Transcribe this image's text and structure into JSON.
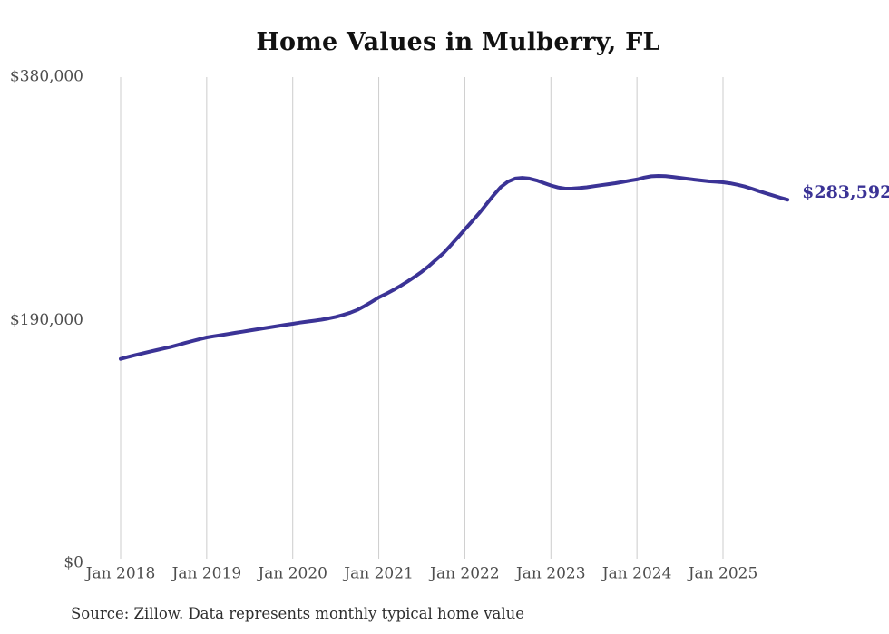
{
  "chart_data": {
    "type": "line",
    "title": "Home Values in Mulberry, FL",
    "source_note": "Source: Zillow. Data represents monthly typical home value",
    "x_tick_labels": [
      "Jan 2018",
      "Jan 2019",
      "Jan 2020",
      "Jan 2021",
      "Jan 2022",
      "Jan 2023",
      "Jan 2024",
      "Jan 2025"
    ],
    "y_tick_labels": [
      "$0",
      "$190,000",
      "$380,000"
    ],
    "y_tick_values": [
      0,
      190000,
      380000
    ],
    "ylim": [
      0,
      380000
    ],
    "grid": "vertical-only",
    "legend": "none",
    "end_label": "$283,592",
    "end_value": 283592,
    "series": [
      {
        "name": "Monthly typical home value",
        "start_month": "2018-01",
        "frequency": "monthly",
        "values": [
          158500,
          160000,
          161400,
          162800,
          164100,
          165400,
          166700,
          168000,
          169500,
          171000,
          172500,
          174000,
          175400,
          176300,
          177200,
          178100,
          179000,
          179900,
          180800,
          181700,
          182600,
          183500,
          184400,
          185300,
          186100,
          187000,
          187800,
          188500,
          189300,
          190300,
          191500,
          193000,
          194800,
          197000,
          200000,
          203300,
          206800,
          209500,
          212500,
          215800,
          219300,
          223000,
          227000,
          231500,
          236500,
          241500,
          247500,
          253800,
          260200,
          266500,
          273000,
          280000,
          287000,
          293500,
          297800,
          300200,
          300800,
          300200,
          298800,
          296800,
          294800,
          293200,
          292300,
          292400,
          292800,
          293400,
          294200,
          295000,
          295800,
          296600,
          297600,
          298600,
          299500,
          301000,
          302000,
          302300,
          302100,
          301500,
          300800,
          300100,
          299400,
          298700,
          298100,
          297700,
          297300,
          296500,
          295400,
          294000,
          292300,
          290400,
          288600,
          286900,
          285200,
          283592
        ]
      }
    ],
    "colors": {
      "line": "#3b3396",
      "end_label": "#3b3396",
      "grid": "#cccccc",
      "axis_text": "#4d4d4d",
      "title": "#111111",
      "source": "#2e2e2e"
    }
  }
}
